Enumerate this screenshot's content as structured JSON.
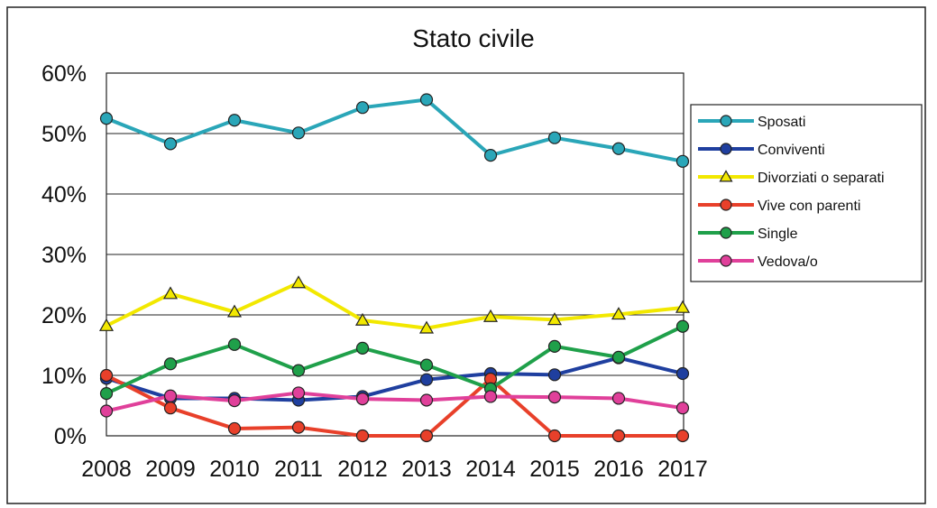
{
  "chart_data": {
    "type": "line",
    "title": "Stato civile",
    "xlabel": "",
    "ylabel": "",
    "categories": [
      "2008",
      "2009",
      "2010",
      "2011",
      "2012",
      "2013",
      "2014",
      "2015",
      "2016",
      "2017"
    ],
    "yticks": [
      "0%",
      "10%",
      "20%",
      "30%",
      "40%",
      "50%",
      "60%"
    ],
    "ylim": [
      0,
      60
    ],
    "grid": true,
    "legend_position": "right",
    "series": [
      {
        "name": "Sposati",
        "color": "#2aa6b8",
        "marker": "circle",
        "values": [
          52.5,
          48.3,
          52.2,
          50.1,
          54.3,
          55.6,
          46.4,
          49.3,
          47.5,
          45.4
        ]
      },
      {
        "name": "Conviventi",
        "color": "#1f3f9f",
        "marker": "circle",
        "values": [
          9.5,
          6.2,
          6.2,
          5.9,
          6.5,
          9.3,
          10.3,
          10.1,
          12.9,
          10.3
        ]
      },
      {
        "name": "Divorziati o separati",
        "color": "#f2e800",
        "marker": "triangle",
        "values": [
          18.2,
          23.5,
          20.5,
          25.3,
          19.1,
          17.8,
          19.7,
          19.2,
          20.1,
          21.2
        ]
      },
      {
        "name": "Vive con parenti",
        "color": "#e8402a",
        "marker": "circle",
        "values": [
          10.0,
          4.6,
          1.2,
          1.4,
          0.0,
          0.0,
          9.4,
          0.0,
          0.0,
          0.0
        ]
      },
      {
        "name": "Single",
        "color": "#1fa04a",
        "marker": "circle",
        "values": [
          7.0,
          11.9,
          15.1,
          10.8,
          14.5,
          11.7,
          7.8,
          14.8,
          13.0,
          18.1
        ]
      },
      {
        "name": "Vedova/o",
        "color": "#e0409a",
        "marker": "circle",
        "values": [
          4.1,
          6.6,
          5.8,
          7.1,
          6.1,
          5.9,
          6.5,
          6.4,
          6.2,
          4.6
        ]
      }
    ]
  }
}
